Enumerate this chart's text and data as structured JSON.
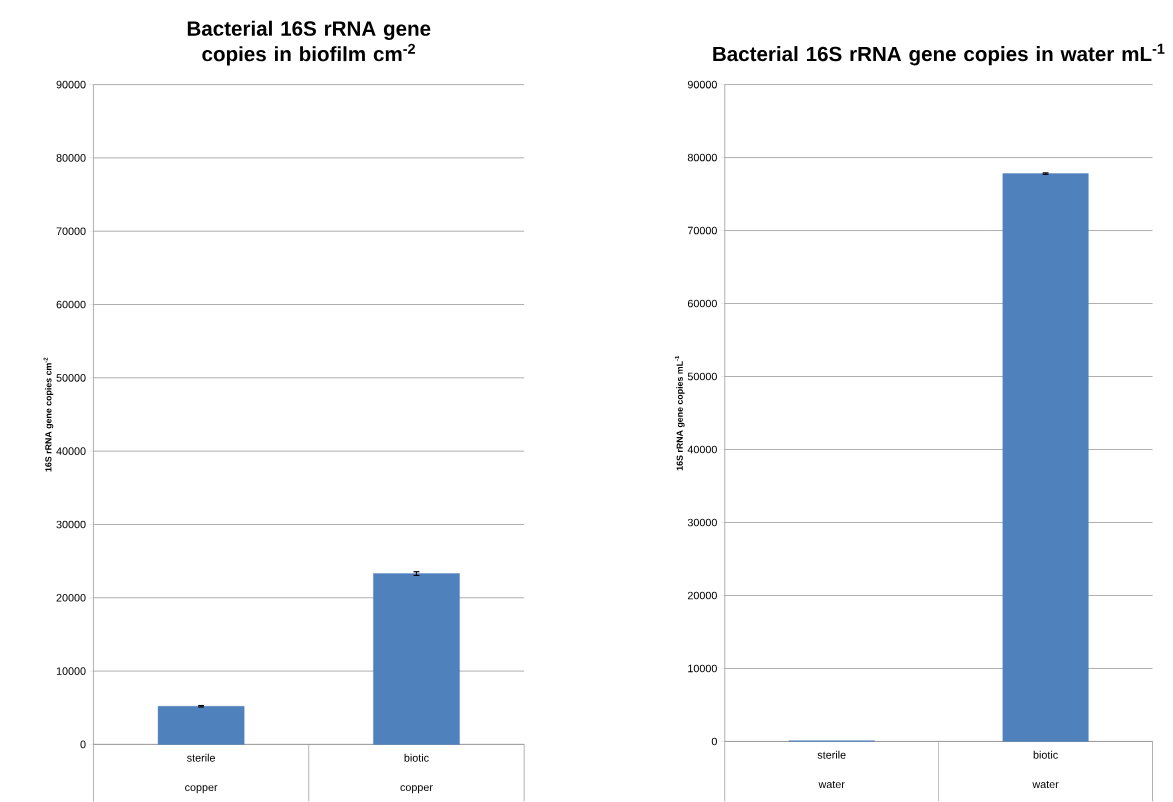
{
  "chart_data": [
    {
      "type": "bar",
      "title": "Bacterial 16S rRNA gene copies in biofilm cm$^{-2}$",
      "ylabel": "16S rRNA gene copies cm$^{-2}$",
      "categories": [
        "sterile copper",
        "biotic copper"
      ],
      "values": [
        5200,
        23300
      ],
      "errors": [
        100,
        250
      ],
      "color": "#4f81bd",
      "ylim": [
        0,
        90000
      ],
      "yticks": [
        0,
        10000,
        20000,
        30000,
        40000,
        50000,
        60000,
        70000,
        80000,
        90000
      ],
      "grid": "y"
    },
    {
      "type": "bar",
      "title": "Bacterial 16S rRNA gene copies in water mL$^{-1}$",
      "ylabel": "16S rRNA gene copies mL$^{-1}$",
      "categories": [
        "sterile water",
        "biotic water"
      ],
      "values": [
        100,
        77800
      ],
      "errors": [
        null,
        100
      ],
      "color": "#4f81bd",
      "ylim": [
        0,
        90000
      ],
      "yticks": [
        0,
        10000,
        20000,
        30000,
        40000,
        50000,
        60000,
        70000,
        80000,
        90000
      ],
      "grid": "y"
    }
  ]
}
